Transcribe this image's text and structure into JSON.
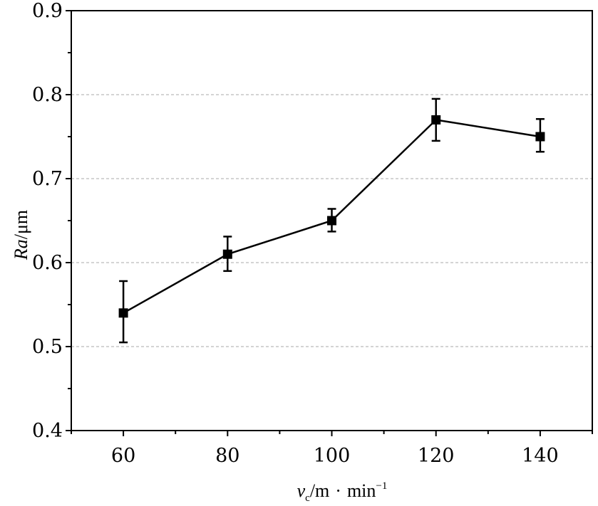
{
  "chart_data": {
    "type": "line",
    "x": [
      60,
      80,
      100,
      120,
      140
    ],
    "y": [
      0.54,
      0.61,
      0.65,
      0.77,
      0.75
    ],
    "err_low": [
      0.505,
      0.59,
      0.637,
      0.745,
      0.732
    ],
    "err_high": [
      0.578,
      0.631,
      0.664,
      0.795,
      0.771
    ],
    "xlim": [
      50,
      150
    ],
    "ylim": [
      0.4,
      0.9
    ],
    "xticks": [
      60,
      80,
      100,
      120,
      140
    ],
    "yticks": [
      0.4,
      0.5,
      0.6,
      0.7,
      0.8,
      0.9
    ],
    "ytick_labels": [
      "0.4",
      "0.5",
      "0.6",
      "0.7",
      "0.8",
      "0.9"
    ],
    "xlabel": {
      "var": "v",
      "sub": "c",
      "unit": "/m",
      "dot": "·",
      "unit2": "min",
      "sup": "−1"
    },
    "ylabel": {
      "var": "Ra",
      "unit": "/μm"
    },
    "grid": "horizontal dashed",
    "colors": {
      "line": "#000000",
      "grid": "#aaaaaa",
      "marker": "#000000"
    }
  }
}
